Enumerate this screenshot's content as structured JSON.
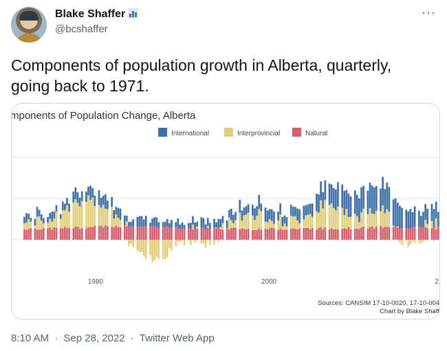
{
  "author": {
    "name": "Blake Shaffer",
    "handle": "@bcshaffer"
  },
  "header": {
    "more_label": "···"
  },
  "tweet": {
    "text": "Components of population growth in Alberta, quarterly, going back to 1971."
  },
  "meta": {
    "time": "8:10 AM",
    "sep": "·",
    "date": "Sep 28, 2022",
    "client": "Twitter Web App"
  },
  "chart_data": {
    "type": "bar",
    "title": "mponents of Population Change, Alberta",
    "legend": [
      {
        "name": "International",
        "color": "#3d6fa8"
      },
      {
        "name": "Interprovincial",
        "color": "#e0cf7c"
      },
      {
        "name": "Natural",
        "color": "#d45d6e"
      }
    ],
    "x_ticks": [
      "1980",
      "2000",
      "2"
    ],
    "sources": "Sources: CANSIM 17-10-0020, 17-10-004",
    "credit": "Chart by Blake Shaff",
    "x_start": 1971,
    "quarters": 196,
    "stacked": true,
    "grid": true,
    "legend_position": "top",
    "colors": {
      "international": "#3d6fa8",
      "interprovincial": "#e0cf7c",
      "natural": "#d45d6e",
      "grid": "#dddddd"
    }
  }
}
